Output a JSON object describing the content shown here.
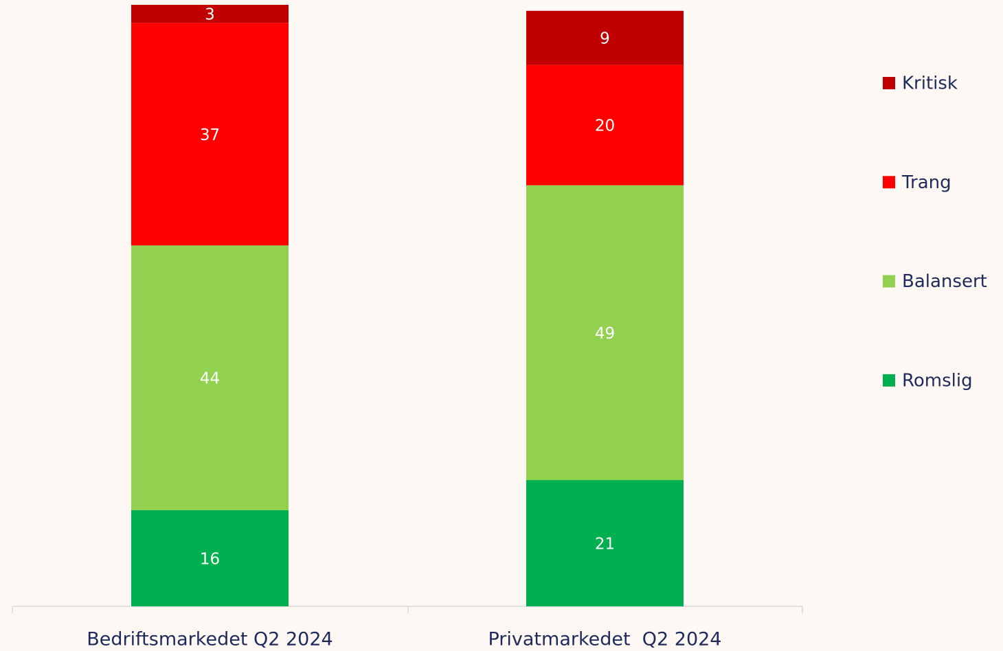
{
  "chart_data": {
    "type": "stacked_bar",
    "categories": [
      "Bedriftsmarkedet Q2 2024",
      "Privatmarkedet  Q2 2024"
    ],
    "series": [
      {
        "name": "Romslig",
        "color": "#00b050",
        "values": [
          16,
          21
        ]
      },
      {
        "name": "Balansert",
        "color": "#92d050",
        "values": [
          44,
          49
        ]
      },
      {
        "name": "Trang",
        "color": "#ff0000",
        "values": [
          37,
          20
        ]
      },
      {
        "name": "Kritisk",
        "color": "#c00000",
        "values": [
          3,
          9
        ]
      }
    ],
    "ylim": [
      0,
      100
    ],
    "legend": "right"
  }
}
